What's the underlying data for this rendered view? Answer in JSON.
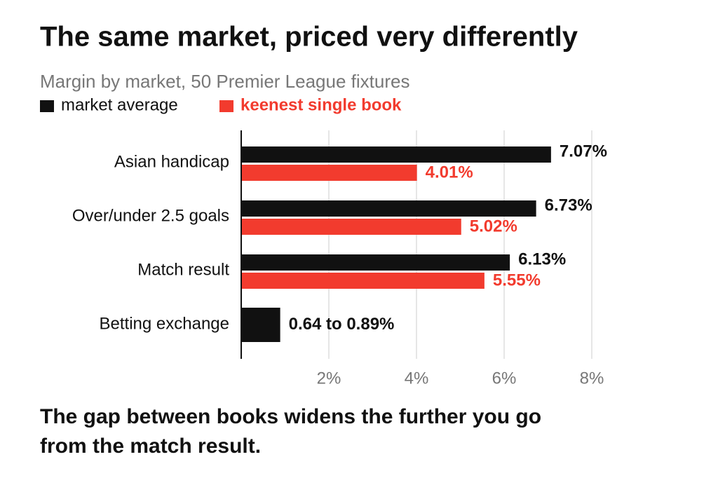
{
  "chart_data": {
    "type": "bar",
    "orientation": "horizontal",
    "title": "The same market, priced very differently",
    "subtitle": "Margin by market, 50 Premier League fixtures",
    "categories": [
      "Asian handicap",
      "Over/under 2.5 goals",
      "Match result",
      "Betting exchange"
    ],
    "series": [
      {
        "name": "market average",
        "color": "#111111",
        "values": [
          7.07,
          6.73,
          6.13,
          0.89
        ],
        "value_labels": [
          "7.07%",
          "6.73%",
          "6.13%",
          "0.64 to 0.89%"
        ]
      },
      {
        "name": "keenest single book",
        "color": "#f23b2e",
        "values": [
          4.01,
          5.02,
          5.55,
          null
        ],
        "value_labels": [
          "4.01%",
          "5.02%",
          "5.55%",
          null
        ]
      }
    ],
    "xlim": [
      0,
      8
    ],
    "xticks": [
      {
        "value": 2,
        "label": "2%"
      },
      {
        "value": 4,
        "label": "4%"
      },
      {
        "value": 6,
        "label": "6%"
      },
      {
        "value": 8,
        "label": "8%"
      }
    ],
    "grid": true,
    "legend": "top-left",
    "note": "The gap between books widens the further you go from the match result."
  }
}
